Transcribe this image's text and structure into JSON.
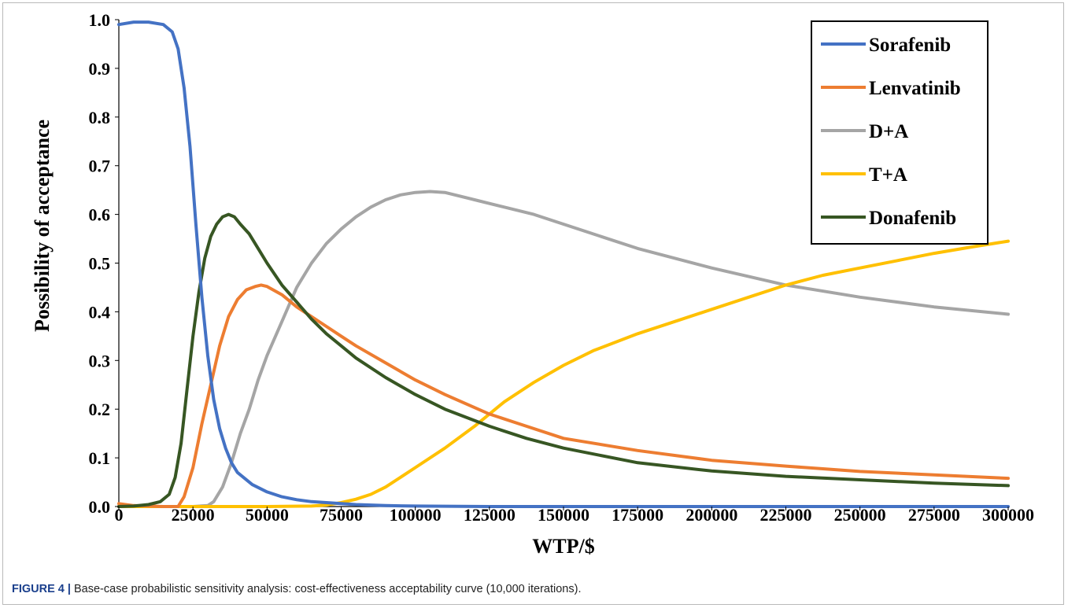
{
  "caption": {
    "label": "FIGURE 4 |",
    "text": " Base-case probabilistic sensitivity analysis: cost-effectiveness acceptability curve (10,000 iterations)."
  },
  "chart_data": {
    "type": "line",
    "title": "",
    "xlabel": "WTP/$",
    "ylabel": "Possibility of acceptance",
    "xlim": [
      0,
      300000
    ],
    "ylim": [
      0,
      1.0
    ],
    "x_ticks": [
      "0",
      "25000",
      "50000",
      "75000",
      "100000",
      "125000",
      "150000",
      "175000",
      "200000",
      "225000",
      "250000",
      "275000",
      "300000"
    ],
    "y_ticks": [
      "0.0",
      "0.1",
      "0.2",
      "0.3",
      "0.4",
      "0.5",
      "0.6",
      "0.7",
      "0.8",
      "0.9",
      "1.0"
    ],
    "grid": false,
    "legend_position": "top-right",
    "series": [
      {
        "name": "Sorafenib",
        "color": "#4472c4",
        "points": [
          [
            0,
            0.99
          ],
          [
            5000,
            0.995
          ],
          [
            10000,
            0.995
          ],
          [
            15000,
            0.99
          ],
          [
            18000,
            0.975
          ],
          [
            20000,
            0.94
          ],
          [
            22000,
            0.86
          ],
          [
            24000,
            0.74
          ],
          [
            26000,
            0.58
          ],
          [
            28000,
            0.43
          ],
          [
            30000,
            0.31
          ],
          [
            32000,
            0.22
          ],
          [
            34000,
            0.16
          ],
          [
            36000,
            0.12
          ],
          [
            38000,
            0.09
          ],
          [
            40000,
            0.07
          ],
          [
            45000,
            0.045
          ],
          [
            50000,
            0.03
          ],
          [
            55000,
            0.02
          ],
          [
            60000,
            0.014
          ],
          [
            65000,
            0.01
          ],
          [
            70000,
            0.008
          ],
          [
            75000,
            0.006
          ],
          [
            80000,
            0.004
          ],
          [
            90000,
            0.002
          ],
          [
            100000,
            0.001
          ],
          [
            125000,
            0.0
          ],
          [
            150000,
            0.0
          ],
          [
            200000,
            0.0
          ],
          [
            250000,
            0.0
          ],
          [
            300000,
            0.0
          ]
        ]
      },
      {
        "name": "Lenvatinib",
        "color": "#ed7d31",
        "points": [
          [
            0,
            0.006
          ],
          [
            5000,
            0.002
          ],
          [
            15000,
            0.0
          ],
          [
            20000,
            0.0
          ],
          [
            22000,
            0.02
          ],
          [
            25000,
            0.08
          ],
          [
            28000,
            0.17
          ],
          [
            31000,
            0.25
          ],
          [
            34000,
            0.33
          ],
          [
            37000,
            0.39
          ],
          [
            40000,
            0.425
          ],
          [
            43000,
            0.445
          ],
          [
            46000,
            0.452
          ],
          [
            48000,
            0.455
          ],
          [
            50000,
            0.452
          ],
          [
            55000,
            0.435
          ],
          [
            60000,
            0.41
          ],
          [
            65000,
            0.39
          ],
          [
            70000,
            0.37
          ],
          [
            75000,
            0.35
          ],
          [
            80000,
            0.33
          ],
          [
            90000,
            0.295
          ],
          [
            100000,
            0.26
          ],
          [
            110000,
            0.23
          ],
          [
            125000,
            0.19
          ],
          [
            137500,
            0.165
          ],
          [
            150000,
            0.14
          ],
          [
            175000,
            0.115
          ],
          [
            200000,
            0.095
          ],
          [
            225000,
            0.083
          ],
          [
            250000,
            0.072
          ],
          [
            275000,
            0.065
          ],
          [
            300000,
            0.058
          ]
        ]
      },
      {
        "name": "D+A",
        "color": "#a5a5a5",
        "points": [
          [
            0,
            0.0
          ],
          [
            25000,
            0.0
          ],
          [
            30000,
            0.002
          ],
          [
            32000,
            0.01
          ],
          [
            35000,
            0.04
          ],
          [
            38000,
            0.09
          ],
          [
            41000,
            0.15
          ],
          [
            44000,
            0.2
          ],
          [
            47000,
            0.26
          ],
          [
            50000,
            0.31
          ],
          [
            55000,
            0.38
          ],
          [
            60000,
            0.45
          ],
          [
            65000,
            0.5
          ],
          [
            70000,
            0.54
          ],
          [
            75000,
            0.57
          ],
          [
            80000,
            0.595
          ],
          [
            85000,
            0.615
          ],
          [
            90000,
            0.63
          ],
          [
            95000,
            0.64
          ],
          [
            100000,
            0.645
          ],
          [
            105000,
            0.647
          ],
          [
            110000,
            0.645
          ],
          [
            120000,
            0.63
          ],
          [
            130000,
            0.615
          ],
          [
            140000,
            0.6
          ],
          [
            150000,
            0.58
          ],
          [
            160000,
            0.56
          ],
          [
            175000,
            0.53
          ],
          [
            200000,
            0.49
          ],
          [
            225000,
            0.455
          ],
          [
            250000,
            0.43
          ],
          [
            275000,
            0.41
          ],
          [
            300000,
            0.395
          ]
        ]
      },
      {
        "name": "T+A",
        "color": "#ffc000",
        "points": [
          [
            0,
            0.0
          ],
          [
            50000,
            0.0
          ],
          [
            65000,
            0.001
          ],
          [
            70000,
            0.003
          ],
          [
            75000,
            0.008
          ],
          [
            80000,
            0.015
          ],
          [
            85000,
            0.025
          ],
          [
            90000,
            0.04
          ],
          [
            95000,
            0.06
          ],
          [
            100000,
            0.08
          ],
          [
            110000,
            0.12
          ],
          [
            120000,
            0.165
          ],
          [
            125000,
            0.19
          ],
          [
            130000,
            0.215
          ],
          [
            140000,
            0.255
          ],
          [
            150000,
            0.29
          ],
          [
            160000,
            0.32
          ],
          [
            175000,
            0.355
          ],
          [
            187500,
            0.38
          ],
          [
            200000,
            0.405
          ],
          [
            212500,
            0.43
          ],
          [
            225000,
            0.455
          ],
          [
            237500,
            0.475
          ],
          [
            250000,
            0.49
          ],
          [
            262500,
            0.505
          ],
          [
            275000,
            0.52
          ],
          [
            287500,
            0.533
          ],
          [
            300000,
            0.545
          ]
        ]
      },
      {
        "name": "Donafenib",
        "color": "#375623",
        "points": [
          [
            0,
            0.0
          ],
          [
            5000,
            0.001
          ],
          [
            10000,
            0.004
          ],
          [
            14000,
            0.01
          ],
          [
            17000,
            0.025
          ],
          [
            19000,
            0.06
          ],
          [
            21000,
            0.13
          ],
          [
            23000,
            0.24
          ],
          [
            25000,
            0.35
          ],
          [
            27000,
            0.44
          ],
          [
            29000,
            0.51
          ],
          [
            31000,
            0.555
          ],
          [
            33000,
            0.58
          ],
          [
            35000,
            0.595
          ],
          [
            37000,
            0.6
          ],
          [
            39000,
            0.595
          ],
          [
            41000,
            0.58
          ],
          [
            44000,
            0.56
          ],
          [
            47000,
            0.53
          ],
          [
            50000,
            0.5
          ],
          [
            55000,
            0.455
          ],
          [
            60000,
            0.42
          ],
          [
            65000,
            0.385
          ],
          [
            70000,
            0.355
          ],
          [
            75000,
            0.33
          ],
          [
            80000,
            0.305
          ],
          [
            90000,
            0.265
          ],
          [
            100000,
            0.23
          ],
          [
            110000,
            0.2
          ],
          [
            125000,
            0.165
          ],
          [
            137500,
            0.14
          ],
          [
            150000,
            0.12
          ],
          [
            175000,
            0.09
          ],
          [
            200000,
            0.073
          ],
          [
            225000,
            0.062
          ],
          [
            250000,
            0.055
          ],
          [
            275000,
            0.048
          ],
          [
            300000,
            0.043
          ]
        ]
      }
    ]
  }
}
